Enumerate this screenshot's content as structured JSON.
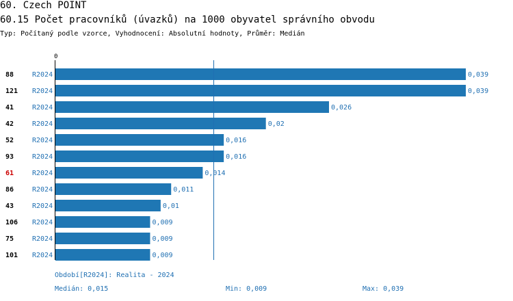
{
  "header": {
    "section": "60. Czech POINT",
    "title": "60.15 Počet pracovníků (úvazků) na 1000 obyvatel správního obvodu",
    "subtitle": "Typ: Počítaný podle vzorce, Vyhodnocení: Absolutní hodnoty, Průměr: Medián"
  },
  "colors": {
    "bar": "#1f77b4",
    "label": "#1f6fb2",
    "highlight": "#cc0000",
    "text": "#000000"
  },
  "chart_data": {
    "type": "bar",
    "orientation": "horizontal",
    "axis_zero_label": "0",
    "xlim": [
      0,
      0.039
    ],
    "median": 0.015,
    "highlight_category": "61",
    "period_label": "R2024",
    "categories": [
      "88",
      "121",
      "41",
      "42",
      "52",
      "93",
      "61",
      "86",
      "43",
      "106",
      "75",
      "101"
    ],
    "values": [
      0.039,
      0.039,
      0.026,
      0.02,
      0.016,
      0.016,
      0.014,
      0.011,
      0.01,
      0.009,
      0.009,
      0.009
    ],
    "value_labels": [
      "0,039",
      "0,039",
      "0,026",
      "0,02",
      "0,016",
      "0,016",
      "0,014",
      "0,011",
      "0,01",
      "0,009",
      "0,009",
      "0,009"
    ]
  },
  "footer": {
    "period": "Období[R2024]: Realita - 2024",
    "median": "Medián: 0,015",
    "min": "Min: 0,009",
    "max": "Max: 0,039"
  }
}
